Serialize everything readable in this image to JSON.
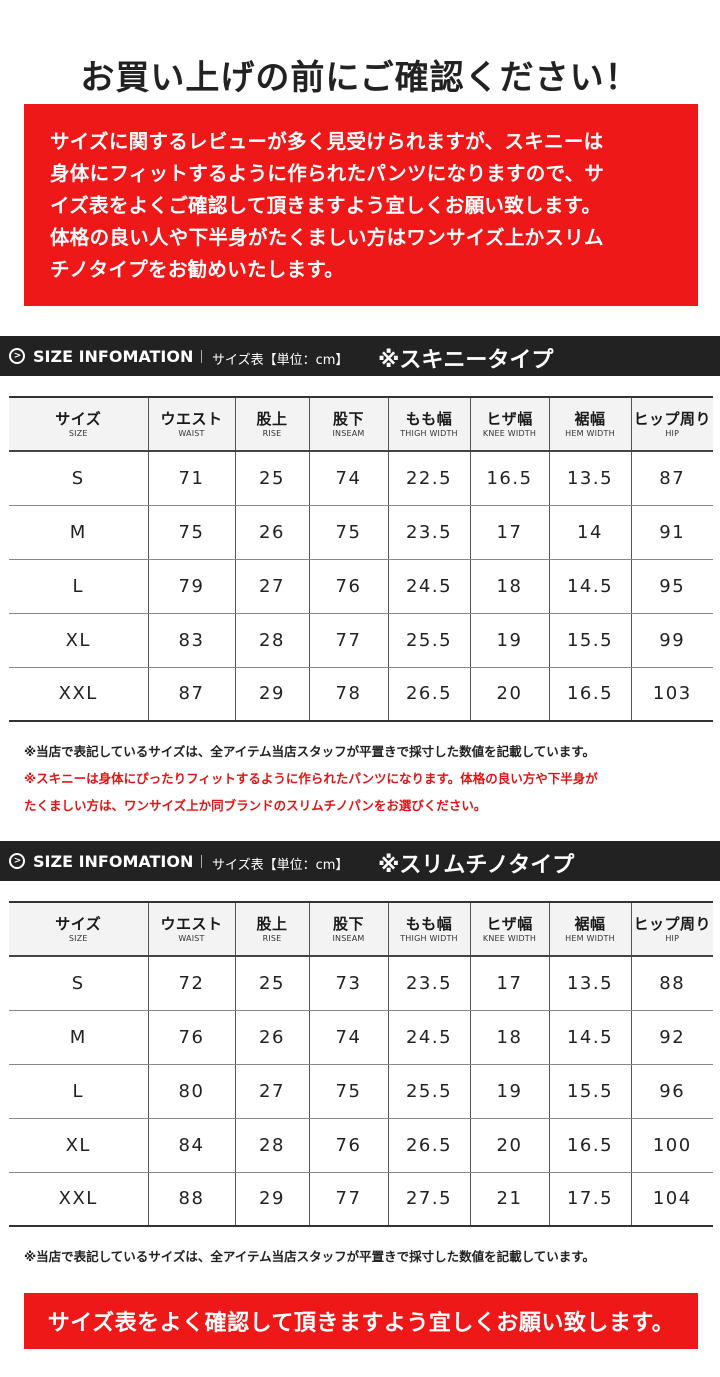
{
  "headline": "お買い上げの前にご確認ください！",
  "warning_lines": [
    "サイズに関するレビューが多く見受けられますが、スキニーは",
    "身体にフィットするように作られたパンツになりますので、サ",
    "イズ表をよくご確認して頂きますよう宜しくお願い致します。",
    "体格の良い人や下半身がたくましい方はワンサイズ上かスリム",
    "チノタイプをお勧めいたします。"
  ],
  "colors": {
    "accent_red": "#ee1818",
    "bar_dark": "#222222"
  },
  "columns": [
    {
      "jp": "サイズ",
      "en": "SIZE"
    },
    {
      "jp": "ウエスト",
      "en": "WAIST"
    },
    {
      "jp": "股上",
      "en": "RISE"
    },
    {
      "jp": "股下",
      "en": "INSEAM"
    },
    {
      "jp": "もも幅",
      "en": "THIGH WIDTH"
    },
    {
      "jp": "ヒザ幅",
      "en": "KNEE WIDTH"
    },
    {
      "jp": "裾幅",
      "en": "HEM WIDTH"
    },
    {
      "jp": "ヒップ周り",
      "en": "HIP"
    }
  ],
  "sections": [
    {
      "icon": "chevron-right-circle-icon",
      "title": "SIZE INFOMATION",
      "unit": "サイズ表【単位：cm】",
      "type": "※スキニータイプ",
      "rows": [
        [
          "S",
          "71",
          "25",
          "74",
          "22.5",
          "16.5",
          "13.5",
          "87"
        ],
        [
          "M",
          "75",
          "26",
          "75",
          "23.5",
          "17",
          "14",
          "91"
        ],
        [
          "L",
          "79",
          "27",
          "76",
          "24.5",
          "18",
          "14.5",
          "95"
        ],
        [
          "XL",
          "83",
          "28",
          "77",
          "25.5",
          "19",
          "15.5",
          "99"
        ],
        [
          "XXL",
          "87",
          "29",
          "78",
          "26.5",
          "20",
          "16.5",
          "103"
        ]
      ],
      "notes": [
        {
          "text": "※当店で表記しているサイズは、全アイテム当店スタッフが平置きで採寸した数値を記載しています。",
          "red": false
        },
        {
          "text": "※スキニーは身体にぴったりフィットするように作られたパンツになります。体格の良い方や下半身が",
          "red": true
        },
        {
          "text": "たくましい方は、ワンサイズ上か同ブランドのスリムチノパンをお選びください。",
          "red": true
        }
      ]
    },
    {
      "icon": "chevron-right-circle-icon",
      "title": "SIZE INFOMATION",
      "unit": "サイズ表【単位：cm】",
      "type": "※スリムチノタイプ",
      "rows": [
        [
          "S",
          "72",
          "25",
          "73",
          "23.5",
          "17",
          "13.5",
          "88"
        ],
        [
          "M",
          "76",
          "26",
          "74",
          "24.5",
          "18",
          "14.5",
          "92"
        ],
        [
          "L",
          "80",
          "27",
          "75",
          "25.5",
          "19",
          "15.5",
          "96"
        ],
        [
          "XL",
          "84",
          "28",
          "76",
          "26.5",
          "20",
          "16.5",
          "100"
        ],
        [
          "XXL",
          "88",
          "29",
          "77",
          "27.5",
          "21",
          "17.5",
          "104"
        ]
      ],
      "notes": [
        {
          "text": "※当店で表記しているサイズは、全アイテム当店スタッフが平置きで採寸した数値を記載しています。",
          "red": false
        }
      ]
    }
  ],
  "bottom_banner": "サイズ表をよく確認して頂きますよう宜しくお願い致します。"
}
